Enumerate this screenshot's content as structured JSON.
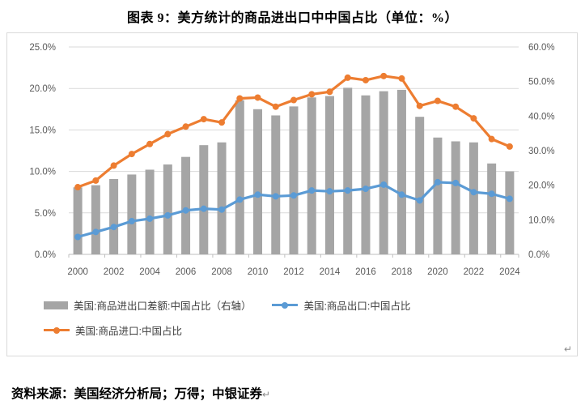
{
  "page": {
    "title": "图表 9：美方统计的商品进出口中中国占比（单位：%）",
    "source": "资料来源：美国经济分析局；万得；中银证券",
    "paragraph_mark": "↵"
  },
  "legend": {
    "items": [
      {
        "label": "美国:商品进出口差额:中国占比（右轴）",
        "swatch": "bar",
        "color": "#a5a5a5"
      },
      {
        "label": "美国:商品出口:中国占比",
        "swatch": "line-marker",
        "color": "#5b9bd5"
      },
      {
        "label": "美国:商品进口:中国占比",
        "swatch": "line-marker",
        "color": "#ed7d31"
      }
    ]
  },
  "chart_data": {
    "type": "combo",
    "title": "图表 9：美方统计的商品进出口中中国占比（单位：%）",
    "categories": [
      2000,
      2001,
      2002,
      2003,
      2004,
      2005,
      2006,
      2007,
      2008,
      2009,
      2010,
      2011,
      2012,
      2013,
      2014,
      2015,
      2016,
      2017,
      2018,
      2019,
      2020,
      2021,
      2022,
      2023,
      2024
    ],
    "x_labels": [
      "2000",
      "2002",
      "2004",
      "2006",
      "2008",
      "2010",
      "2012",
      "2014",
      "2016",
      "2018",
      "2020",
      "2022",
      "2024"
    ],
    "series": [
      {
        "name": "美国:商品进出口差额:中国占比（右轴）",
        "type": "bar",
        "axis": "right",
        "color": "#a5a5a5",
        "values": [
          19.4,
          20.0,
          21.8,
          23.1,
          24.5,
          26.0,
          28.2,
          31.6,
          32.4,
          44.6,
          42.0,
          40.2,
          42.8,
          45.4,
          45.8,
          48.2,
          46.0,
          47.2,
          47.6,
          39.8,
          33.8,
          32.7,
          32.4,
          26.3,
          24.0
        ]
      },
      {
        "name": "美国:商品出口:中国占比",
        "type": "line",
        "axis": "left",
        "color": "#5b9bd5",
        "values": [
          2.1,
          2.7,
          3.3,
          4.0,
          4.3,
          4.7,
          5.3,
          5.5,
          5.4,
          6.6,
          7.2,
          7.0,
          7.1,
          7.7,
          7.6,
          7.7,
          7.9,
          8.4,
          7.2,
          6.5,
          8.7,
          8.6,
          7.5,
          7.3,
          6.7
        ]
      },
      {
        "name": "美国:商品进口:中国占比",
        "type": "line",
        "axis": "left",
        "color": "#ed7d31",
        "values": [
          8.1,
          8.9,
          10.7,
          12.1,
          13.3,
          14.5,
          15.4,
          16.3,
          15.9,
          18.8,
          18.9,
          17.8,
          18.6,
          19.3,
          19.6,
          21.3,
          21.0,
          21.5,
          21.2,
          17.9,
          18.5,
          17.8,
          16.4,
          13.9,
          13.0
        ]
      }
    ],
    "left_axis": {
      "min": 0,
      "max": 25,
      "step": 5,
      "labels": [
        "0.0%",
        "5.0%",
        "10.0%",
        "15.0%",
        "20.0%",
        "25.0%"
      ]
    },
    "right_axis": {
      "min": 0,
      "max": 60,
      "step": 10,
      "labels": [
        "0.0%",
        "10.0%",
        "20.0%",
        "30.0%",
        "40.0%",
        "50.0%",
        "60.0%"
      ]
    },
    "grid": true,
    "legend_position": "bottom-left",
    "colors": {
      "gridline": "#d9d9d9",
      "axis_line": "#bfbfbf",
      "axis_text": "#595959"
    }
  }
}
